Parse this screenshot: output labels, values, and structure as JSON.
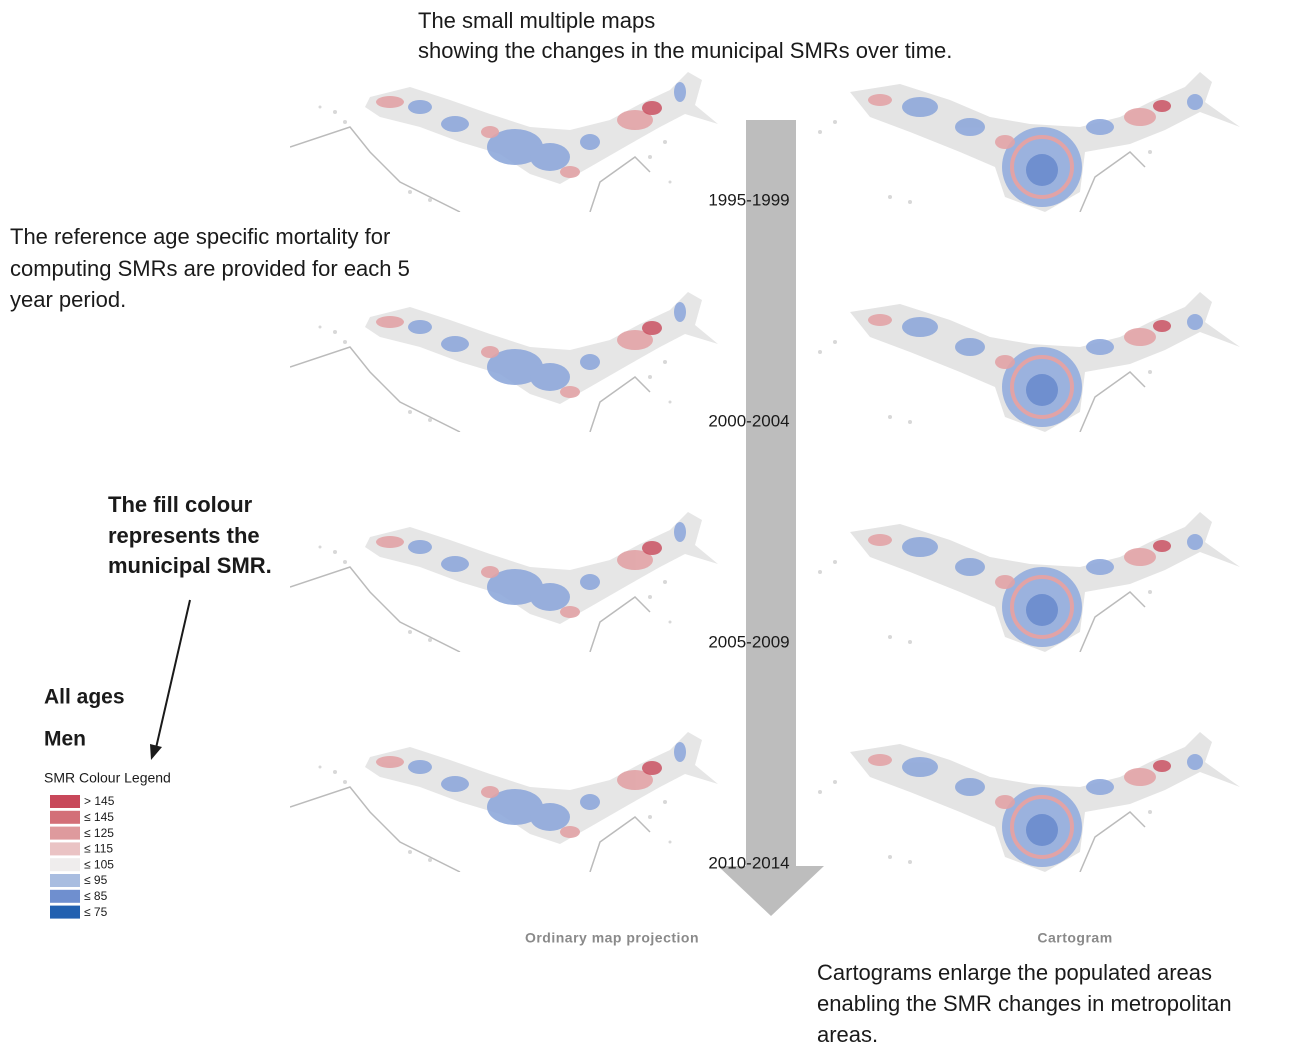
{
  "header": {
    "lines": [
      "The small multiple maps",
      "showing the changes in the municipal SMRs over time."
    ]
  },
  "notes": {
    "reference": [
      "The reference age specific mortality for",
      "computing SMRs are provided for each 5",
      "year period."
    ],
    "fill": [
      "The fill colour",
      "represents the",
      "municipal SMR."
    ],
    "cartogram": [
      "Cartograms enlarge the populated areas",
      "enabling the SMR changes in metropolitan",
      "areas."
    ]
  },
  "legend": {
    "group": "All ages",
    "sex": "Men",
    "title": "SMR Colour Legend",
    "items": [
      {
        "label": "> 145",
        "color": "#c8485a"
      },
      {
        "label": "≤ 145",
        "color": "#d36f78"
      },
      {
        "label": "≤ 125",
        "color": "#de9a9d"
      },
      {
        "label": "≤ 115",
        "color": "#eac3c4"
      },
      {
        "label": "≤ 105",
        "color": "#efeded"
      },
      {
        "label": "≤ 95",
        "color": "#a9bde0"
      },
      {
        "label": "≤ 85",
        "color": "#6f8fcf"
      },
      {
        "label": "≤ 75",
        "color": "#2160b0"
      }
    ]
  },
  "periods": [
    "1995-1999",
    "2000-2004",
    "2005-2009",
    "2010-2014"
  ],
  "columns": [
    "Ordinary map projection",
    "Cartogram"
  ]
}
